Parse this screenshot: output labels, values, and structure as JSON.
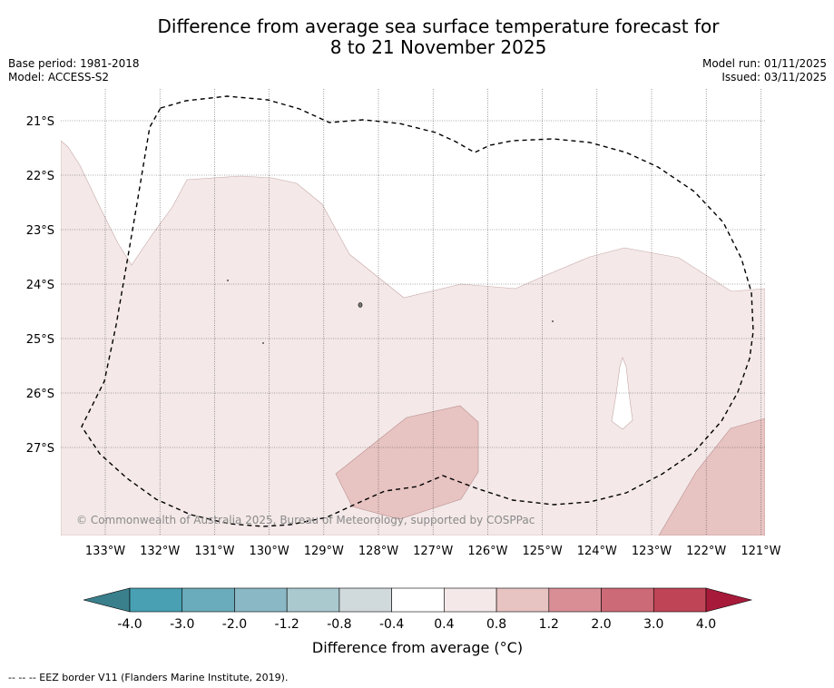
{
  "title": {
    "line1": "Difference from average sea surface temperature forecast for",
    "line2": "8 to 21 November 2025"
  },
  "meta_left": {
    "base_period": "Base period: 1981-2018",
    "model": "Model: ACCESS-S2"
  },
  "meta_right": {
    "model_run": "Model run: 01/11/2025",
    "issued": "Issued: 03/11/2025"
  },
  "map": {
    "lat_labels": [
      "21°S",
      "22°S",
      "23°S",
      "24°S",
      "25°S",
      "26°S",
      "27°S"
    ],
    "lon_labels": [
      "133°W",
      "132°W",
      "131°W",
      "130°W",
      "129°W",
      "128°W",
      "127°W",
      "126°W",
      "125°W",
      "124°W",
      "123°W",
      "122°W",
      "121°W"
    ],
    "copyright": "© Commonwealth of Australia 2025, Bureau of Meteorology, supported by COSPPac",
    "colors": {
      "anomaly_0_4_to_0_8": "#f4e8e8",
      "anomaly_0_8_to_1_2": "#e7c3c1",
      "eez_border": "#000000"
    }
  },
  "colorbar": {
    "title": "Difference from average (°C)",
    "tick_labels": [
      "-4.0",
      "-3.0",
      "-2.0",
      "-1.2",
      "-0.8",
      "-0.4",
      "0.4",
      "0.8",
      "1.2",
      "2.0",
      "3.0",
      "4.0"
    ],
    "bins": [
      "#3a7f8c",
      "#48a0b2",
      "#6aacbb",
      "#8ab8c4",
      "#a9c9cf",
      "#d0d9dc",
      "#ffffff",
      "#f4e8e8",
      "#e7c3c1",
      "#d98e96",
      "#cd6a77",
      "#bf4556",
      "#a71a3a"
    ]
  },
  "footnote": "--  --  -- EEZ border V11 (Flanders Marine Institute, 2019)."
}
